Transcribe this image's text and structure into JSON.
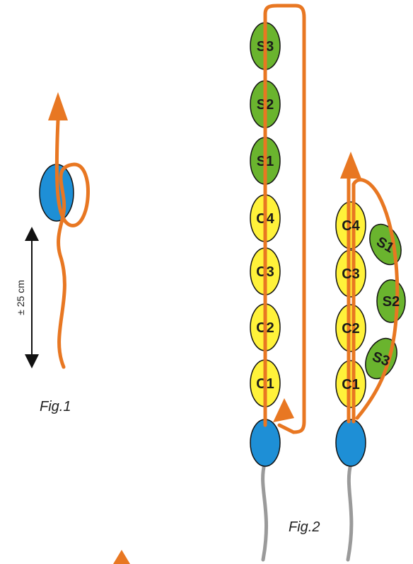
{
  "fig1": {
    "caption": "Fig.1",
    "measure_label": "± 25 cm"
  },
  "fig2": {
    "caption": "Fig.2",
    "left_column": [
      "S3",
      "S2",
      "S1",
      "C4",
      "C3",
      "C2",
      "C1"
    ],
    "right_column": [
      "C4",
      "C3",
      "C2",
      "C1"
    ],
    "right_side": [
      "S1",
      "S2",
      "S3"
    ]
  },
  "colors": {
    "orange": "#e87722",
    "blue": "#1e8fd6",
    "green": "#6ab42e",
    "yellow": "#fff23a",
    "grey": "#9a9a9a",
    "black": "#111111"
  }
}
